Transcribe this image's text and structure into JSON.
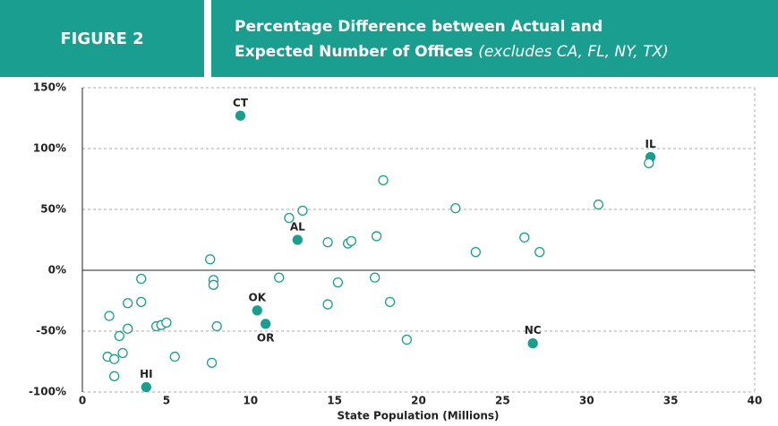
{
  "chart_data": {
    "type": "scatter",
    "figure_label": "FIGURE 2",
    "title_lines": [
      "Percentage Difference between Actual and",
      "Expected Number of Offices"
    ],
    "subtitle": "(excludes CA, FL, NY, TX)",
    "xlabel": "State Population (Millions)",
    "xlim": [
      0,
      40
    ],
    "xticks": [
      0,
      5,
      10,
      15,
      20,
      25,
      30,
      35,
      40
    ],
    "ylim": [
      -100,
      150
    ],
    "yticks": [
      {
        "value": -100,
        "label": "-100%"
      },
      {
        "value": -50,
        "label": "-50%"
      },
      {
        "value": 0,
        "label": "0%"
      },
      {
        "value": 50,
        "label": "50%"
      },
      {
        "value": 100,
        "label": "100%"
      },
      {
        "value": 150,
        "label": "150%"
      }
    ],
    "grid": true,
    "series": [
      {
        "color": "#1a9e8f",
        "marker": "filled",
        "x": [
          9.4,
          33.8,
          12.8,
          10.4,
          10.9,
          26.8,
          3.8
        ],
        "values": [
          127,
          93,
          25,
          -33,
          -44,
          -60,
          -96
        ],
        "point_labels": [
          "CT",
          "IL",
          "AL",
          "OK",
          "OR",
          "NC",
          "HI"
        ]
      },
      {
        "color": "#1a9e8f",
        "marker": "hollow",
        "x": [
          1.6,
          1.5,
          1.9,
          1.9,
          2.2,
          2.4,
          2.7,
          2.7,
          3.5,
          3.5,
          4.4,
          4.7,
          5.0,
          5.5,
          7.6,
          7.7,
          7.8,
          7.8,
          8.0,
          11.7,
          12.3,
          13.1,
          14.6,
          14.6,
          15.2,
          15.8,
          16.0,
          17.5,
          17.4,
          17.9,
          18.3,
          19.3,
          22.2,
          23.4,
          26.3,
          27.2,
          30.7,
          33.7
        ],
        "values": [
          -37.5,
          -71,
          -73,
          -87,
          -54,
          -68,
          -48,
          -27,
          -7,
          -26,
          -46,
          -45,
          -43,
          -71,
          9,
          -76,
          -8,
          -12,
          -46,
          -6,
          43,
          49,
          23,
          -28,
          -10,
          22,
          24,
          28,
          -6,
          74,
          -26,
          -57,
          51,
          15,
          27,
          15,
          54,
          88
        ]
      }
    ]
  }
}
